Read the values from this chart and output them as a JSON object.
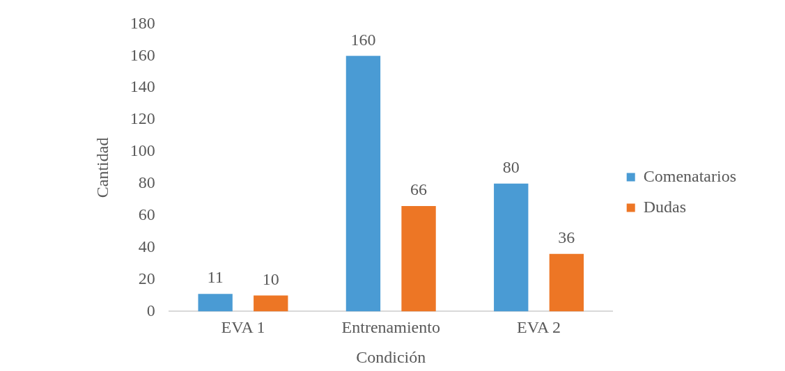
{
  "chart_data": {
    "type": "bar",
    "xlabel": "Condición",
    "ylabel": "Cantidad",
    "categories": [
      "EVA 1",
      "Entrenamiento",
      "EVA 2"
    ],
    "series": [
      {
        "name": "Comenatarios",
        "color": "#4a9bd4",
        "values": [
          11,
          160,
          80
        ]
      },
      {
        "name": "Dudas",
        "color": "#ed7625",
        "values": [
          10,
          66,
          36
        ]
      }
    ],
    "ylim": [
      0,
      180
    ],
    "yticks": [
      0,
      20,
      40,
      60,
      80,
      100,
      120,
      140,
      160,
      180
    ],
    "grid": false,
    "legend": "right",
    "data_labels": true
  }
}
